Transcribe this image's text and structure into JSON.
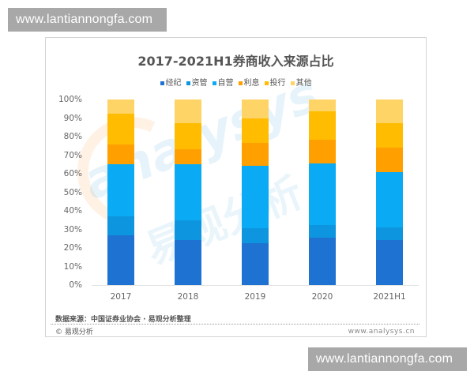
{
  "watermarks": {
    "top_banner": "www.lantiannongfa.com",
    "bottom_banner": "www.lantiannongfa.com",
    "background_text": "analysys",
    "background_text_cn": "易观分析"
  },
  "chart": {
    "title": "2017-2021H1券商收入来源占比",
    "source": "数据来源：中国证券业协会 · 易观分析整理",
    "copyright": "© 易观分析",
    "site": "www.analysys.cn"
  },
  "chart_data": {
    "type": "bar",
    "stacked": true,
    "title": "2017-2021H1券商收入来源占比",
    "xlabel": "",
    "ylabel": "",
    "ylim": [
      0,
      100
    ],
    "yticks": [
      "0%",
      "10%",
      "20%",
      "30%",
      "40%",
      "50%",
      "60%",
      "70%",
      "80%",
      "90%",
      "100%"
    ],
    "categories": [
      "2017",
      "2018",
      "2019",
      "2020",
      "2021H1"
    ],
    "legend_position": "top",
    "grid": false,
    "series": [
      {
        "name": "经纪",
        "color": "#1e73d2",
        "values": [
          27.0,
          24.4,
          22.7,
          25.5,
          24.4
        ]
      },
      {
        "name": "资管",
        "color": "#0d96df",
        "values": [
          10.2,
          10.4,
          7.8,
          6.8,
          6.8
        ]
      },
      {
        "name": "自营",
        "color": "#0aaaf5",
        "values": [
          27.8,
          30.3,
          33.6,
          33.2,
          29.8
        ]
      },
      {
        "name": "利息",
        "color": "#ff9f00",
        "values": [
          10.9,
          8.1,
          12.5,
          12.8,
          13.1
        ]
      },
      {
        "name": "投行",
        "color": "#ffbc00",
        "values": [
          16.6,
          14.2,
          13.1,
          15.3,
          13.2
        ]
      },
      {
        "name": "其他",
        "color": "#ffd466",
        "values": [
          7.5,
          12.6,
          10.3,
          6.4,
          12.7
        ]
      }
    ]
  }
}
